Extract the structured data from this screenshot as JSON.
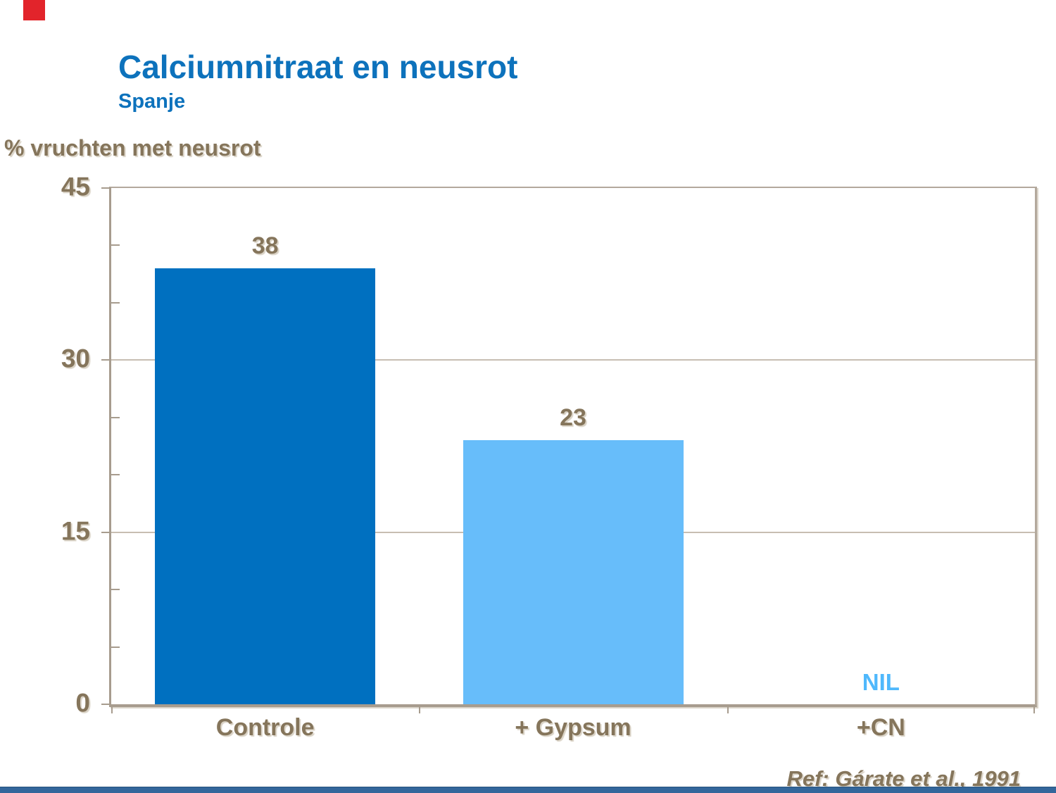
{
  "slide": {
    "title": "Calciumnitraat en neusrot",
    "subtitle": "Spanje",
    "reference": "Ref: Gárate et al., 1991",
    "colors": {
      "title_blue": "#0D72BC",
      "text_brown": "#85755B",
      "accent_red": "#E2242B",
      "footer_bar_blue": "#33669B"
    }
  },
  "chart_data": {
    "type": "bar",
    "title": "Calciumnitraat en neusrot — Spanje",
    "ylabel": "% vruchten met neusrot",
    "xlabel": "",
    "categories": [
      "Controle",
      "+ Gypsum",
      "+CN"
    ],
    "values": [
      38,
      23,
      0
    ],
    "bar_labels": [
      "38",
      "23",
      "NIL"
    ],
    "ylim": [
      0,
      45
    ],
    "yticks": [
      45,
      30,
      15,
      0
    ],
    "minor_tick_step": 5,
    "grid": "horizontal-major",
    "legend": "none",
    "bar_colors": [
      "#0070C0",
      "#67BDFA",
      "none"
    ],
    "nil_label_color": "#4FB8FC",
    "axis_color": "#A79C8E",
    "gridline_color": "#C7BEB2"
  }
}
